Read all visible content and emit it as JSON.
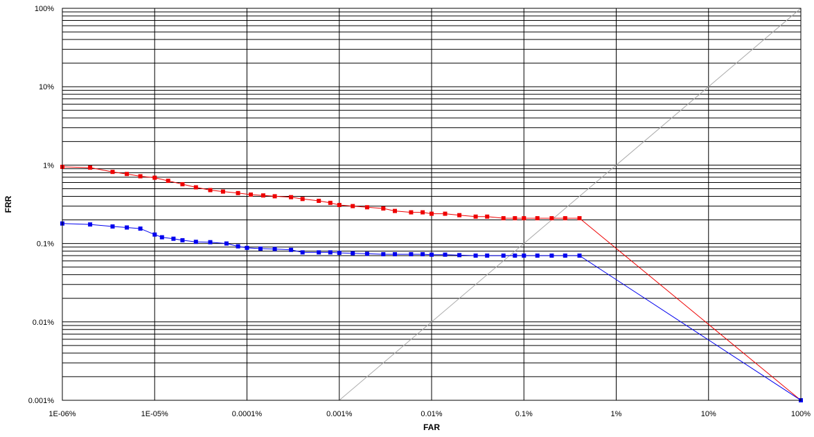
{
  "chart_data": {
    "type": "line",
    "title": "",
    "xlabel": "FAR",
    "ylabel": "FRR",
    "x_scale": "log",
    "y_scale": "log",
    "xlim": [
      1e-06,
      100
    ],
    "ylim": [
      0.001,
      100
    ],
    "x_ticks": [
      {
        "value": 1e-06,
        "label": "1E-06%"
      },
      {
        "value": 1e-05,
        "label": "1E-05%"
      },
      {
        "value": 0.0001,
        "label": "0.0001%"
      },
      {
        "value": 0.001,
        "label": "0.001%"
      },
      {
        "value": 0.01,
        "label": "0.01%"
      },
      {
        "value": 0.1,
        "label": "0.1%"
      },
      {
        "value": 1,
        "label": "1%"
      },
      {
        "value": 10,
        "label": "10%"
      },
      {
        "value": 100,
        "label": "100%"
      }
    ],
    "y_ticks": [
      {
        "value": 0.001,
        "label": "0.001%"
      },
      {
        "value": 0.01,
        "label": "0.01%"
      },
      {
        "value": 0.1,
        "label": "0.1%"
      },
      {
        "value": 1,
        "label": "1%"
      },
      {
        "value": 10,
        "label": "10%"
      },
      {
        "value": 100,
        "label": "100%"
      }
    ],
    "grid": true,
    "reference_line": {
      "color": "#aaaaaa",
      "x": [
        0.001,
        100
      ],
      "y": [
        0.001,
        100
      ]
    },
    "series": [
      {
        "color": "#ee0000",
        "x": [
          1e-06,
          2e-06,
          3.5e-06,
          5e-06,
          7e-06,
          1e-05,
          1.4e-05,
          2e-05,
          2.8e-05,
          4e-05,
          5.5e-05,
          8e-05,
          0.00011,
          0.00015,
          0.0002,
          0.0003,
          0.0004,
          0.0006,
          0.0008,
          0.001,
          0.0014,
          0.002,
          0.003,
          0.004,
          0.006,
          0.008,
          0.01,
          0.014,
          0.02,
          0.03,
          0.04,
          0.06,
          0.08,
          0.1,
          0.14,
          0.2,
          0.28,
          0.4,
          100
        ],
        "y": [
          0.95,
          0.93,
          0.82,
          0.77,
          0.72,
          0.69,
          0.63,
          0.57,
          0.52,
          0.48,
          0.46,
          0.44,
          0.42,
          0.41,
          0.4,
          0.39,
          0.37,
          0.35,
          0.33,
          0.31,
          0.3,
          0.29,
          0.28,
          0.26,
          0.25,
          0.25,
          0.24,
          0.24,
          0.23,
          0.22,
          0.22,
          0.21,
          0.21,
          0.21,
          0.21,
          0.21,
          0.21,
          0.21,
          0.001
        ]
      },
      {
        "color": "#0000ee",
        "x": [
          1e-06,
          2e-06,
          3.5e-06,
          5e-06,
          7e-06,
          1e-05,
          1.2e-05,
          1.6e-05,
          2e-05,
          2.8e-05,
          4e-05,
          6e-05,
          8e-05,
          0.0001,
          0.00014,
          0.0002,
          0.0003,
          0.0004,
          0.0006,
          0.0008,
          0.001,
          0.0014,
          0.002,
          0.003,
          0.004,
          0.006,
          0.008,
          0.01,
          0.014,
          0.02,
          0.03,
          0.04,
          0.06,
          0.08,
          0.1,
          0.14,
          0.2,
          0.28,
          0.4,
          100
        ],
        "y": [
          0.18,
          0.175,
          0.165,
          0.16,
          0.155,
          0.13,
          0.12,
          0.115,
          0.11,
          0.105,
          0.104,
          0.1,
          0.092,
          0.088,
          0.086,
          0.085,
          0.083,
          0.077,
          0.077,
          0.077,
          0.076,
          0.075,
          0.074,
          0.073,
          0.073,
          0.073,
          0.073,
          0.072,
          0.072,
          0.071,
          0.07,
          0.07,
          0.07,
          0.07,
          0.07,
          0.07,
          0.07,
          0.07,
          0.07,
          0.001
        ]
      }
    ]
  }
}
